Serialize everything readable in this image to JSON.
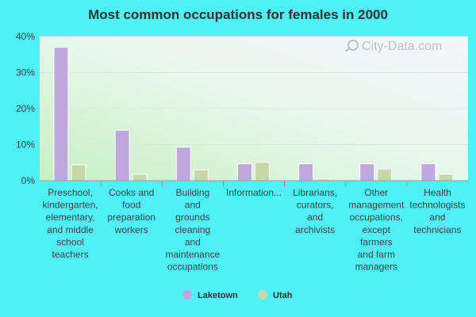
{
  "chart_data": {
    "type": "bar",
    "title": "Most common occupations for females in 2000",
    "xlabel": "",
    "ylabel": "",
    "ylim": [
      0,
      40
    ],
    "yticks": [
      "0%",
      "10%",
      "20%",
      "30%",
      "40%"
    ],
    "grid": true,
    "legend_position": "bottom",
    "categories": [
      "Preschool, kindergarten, elementary, and middle school teachers",
      "Cooks and food preparation workers",
      "Building and grounds cleaning and maintenance occupations",
      "Information...",
      "Librarians, curators, and archivists",
      "Other management occupations, except farmers and farm managers",
      "Health technologists and technicians"
    ],
    "category_lines": [
      [
        "Preschool,",
        "kindergarten,",
        "elementary,",
        "and middle",
        "school",
        "teachers"
      ],
      [
        "Cooks and",
        "food",
        "preparation",
        "workers"
      ],
      [
        "Building",
        "and",
        "grounds",
        "cleaning",
        "and",
        "maintenance",
        "occupations"
      ],
      [
        "Information..."
      ],
      [
        "Librarians,",
        "curators,",
        "and",
        "archivists"
      ],
      [
        "Other",
        "management",
        "occupations,",
        "except",
        "farmers",
        "and farm",
        "managers"
      ],
      [
        "Health",
        "technologists",
        "and",
        "technicians"
      ]
    ],
    "series": [
      {
        "name": "Laketown",
        "color": "#c0a8dc",
        "values": [
          37,
          14,
          9.3,
          4.7,
          4.7,
          4.7,
          4.7
        ]
      },
      {
        "name": "Utah",
        "color": "#c8d8a4",
        "values": [
          4.4,
          1.8,
          3.0,
          5.1,
          0.5,
          3.2,
          1.8
        ]
      }
    ]
  },
  "watermark": "City-Data.com"
}
